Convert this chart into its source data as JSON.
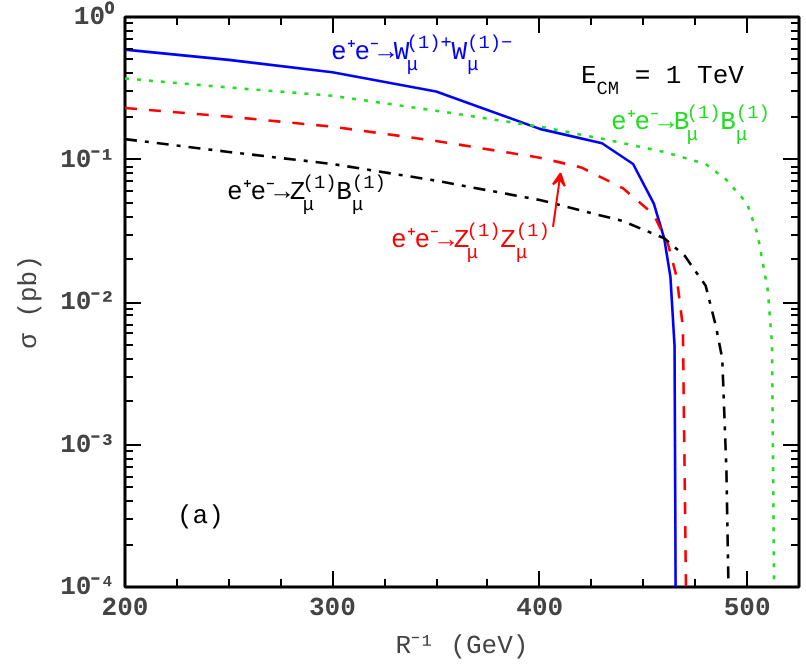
{
  "chart_data": {
    "type": "line",
    "xlabel": "R⁻¹ (GeV)",
    "ylabel": "σ (pb)",
    "log": "y",
    "grid": false,
    "xlim": [
      200,
      525
    ],
    "xticks": [
      200,
      300,
      400,
      500
    ],
    "ylim": [
      0.0001,
      1
    ],
    "yticks": [
      {
        "value": 0.0001,
        "label": "10⁻⁴"
      },
      {
        "value": 0.001,
        "label": "10⁻³"
      },
      {
        "value": 0.01,
        "label": "10⁻²"
      },
      {
        "value": 0.1,
        "label": "10⁻¹"
      },
      {
        "value": 1,
        "label": "10⁰"
      }
    ],
    "series": [
      {
        "color": "#0000ff",
        "line_style": "solid",
        "x": [
          200,
          250,
          300,
          350,
          400,
          430,
          445,
          455,
          460,
          463,
          465,
          465.5
        ],
        "values": [
          0.59,
          0.5,
          0.41,
          0.3,
          0.164,
          0.13,
          0.093,
          0.049,
          0.028,
          0.015,
          0.0049,
          0.0001
        ]
      },
      {
        "color": "#22dd22",
        "line_style": "dotted",
        "x": [
          200,
          250,
          300,
          350,
          400,
          430,
          460,
          480,
          490,
          500,
          505,
          510,
          512,
          513
        ],
        "values": [
          0.37,
          0.32,
          0.28,
          0.22,
          0.17,
          0.14,
          0.113,
          0.093,
          0.072,
          0.049,
          0.03,
          0.012,
          0.005,
          0.0001
        ]
      },
      {
        "color": "#ff0000",
        "line_style": "dashed",
        "x": [
          200,
          250,
          300,
          350,
          400,
          420,
          440,
          455,
          462,
          466,
          469,
          470.5
        ],
        "values": [
          0.23,
          0.2,
          0.17,
          0.135,
          0.103,
          0.088,
          0.063,
          0.041,
          0.025,
          0.015,
          0.0067,
          0.0001
        ]
      },
      {
        "color": "#000000",
        "line_style": "dashdot",
        "x": [
          200,
          250,
          300,
          350,
          400,
          440,
          460,
          470,
          480,
          485,
          488,
          490,
          491
        ],
        "values": [
          0.139,
          0.113,
          0.093,
          0.071,
          0.052,
          0.037,
          0.028,
          0.021,
          0.013,
          0.0067,
          0.004,
          0.00066,
          0.0001
        ]
      }
    ],
    "annotations": [
      "e⁺e⁻→W$_{μ}$$^{(1)+}$W$_{μ}$$^{(1)−}$",
      "e⁺e⁻→B$_{μ}$$^{(1)}$B$_{μ}$$^{(1)}$",
      {
        "text": "e⁺e⁻→Z$_{μ}$$^{(1)}$Z$_{μ}$$^{(1)}$",
        "x": 410,
        "y": 0.08
      },
      "e⁺e⁻→Z$_{μ}$$^{(1)}$B$_{μ}$$^{(1)}$",
      "E$_{CM}$ = 1 TeV",
      "(a)"
    ]
  }
}
